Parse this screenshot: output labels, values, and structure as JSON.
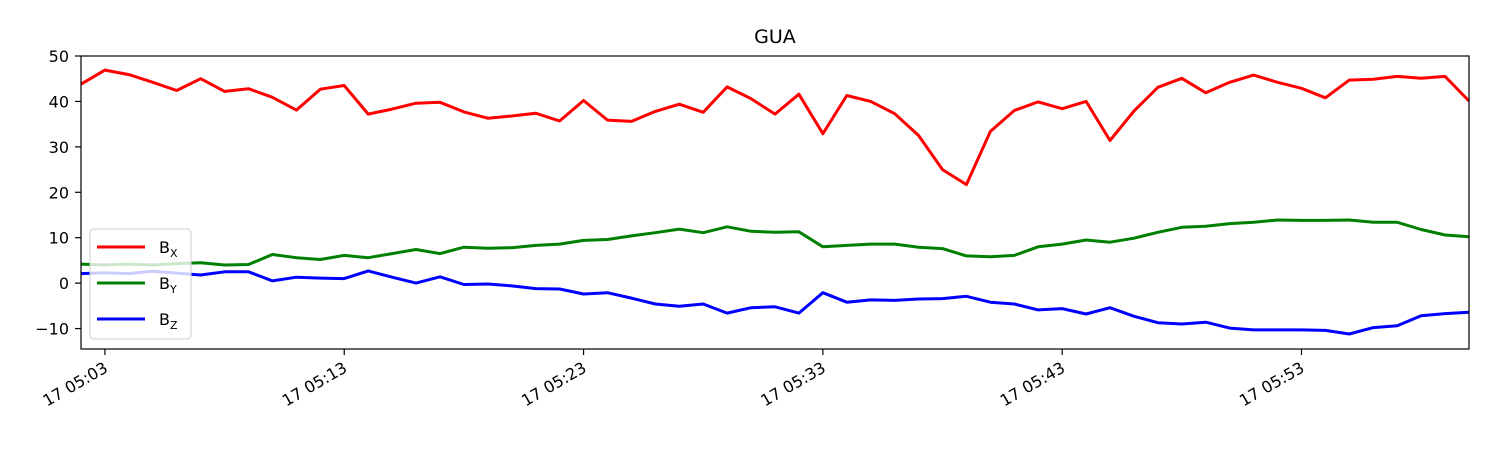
{
  "chart_data": {
    "type": "line",
    "title": "GUA",
    "xlabel": "",
    "ylabel": "",
    "x_start": "05:02",
    "x_end": "06:00",
    "x_ticks": [
      {
        "t": "05:03",
        "label": "17 05:03"
      },
      {
        "t": "05:13",
        "label": "17 05:13"
      },
      {
        "t": "05:23",
        "label": "17 05:23"
      },
      {
        "t": "05:33",
        "label": "17 05:33"
      },
      {
        "t": "05:43",
        "label": "17 05:43"
      },
      {
        "t": "05:53",
        "label": "17 05:53"
      }
    ],
    "ylim": [
      -14.5,
      50
    ],
    "y_ticks": [
      -10,
      0,
      10,
      20,
      30,
      40,
      50
    ],
    "grid": false,
    "legend_position": "lower-left",
    "series": [
      {
        "name": "B",
        "subscript": "X",
        "color": "#ff0000",
        "values": [
          43.8,
          46.9,
          45.9,
          44.2,
          42.4,
          45.0,
          42.2,
          42.8,
          40.9,
          38.1,
          42.7,
          43.5,
          37.2,
          38.3,
          39.6,
          39.8,
          37.7,
          36.3,
          36.8,
          37.4,
          35.7,
          40.2,
          35.9,
          35.6,
          37.8,
          39.4,
          37.6,
          43.2,
          40.6,
          37.2,
          41.6,
          32.9,
          41.3,
          40.0,
          37.3,
          32.5,
          25.0,
          21.7,
          33.4,
          38.0,
          39.9,
          38.4,
          40.0,
          31.4,
          37.9,
          43.1,
          45.1,
          41.9,
          44.2,
          45.8,
          44.2,
          42.9,
          40.8,
          44.7,
          44.9,
          45.5,
          45.1,
          45.5,
          40.1
        ]
      },
      {
        "name": "B",
        "subscript": "Y",
        "color": "#008000",
        "values": [
          4.2,
          4.0,
          4.2,
          4.0,
          4.3,
          4.5,
          4.0,
          4.1,
          6.3,
          5.6,
          5.2,
          6.1,
          5.6,
          6.5,
          7.4,
          6.5,
          7.9,
          7.7,
          7.8,
          8.3,
          8.6,
          9.4,
          9.6,
          10.4,
          11.1,
          11.9,
          11.1,
          12.4,
          11.4,
          11.2,
          11.3,
          8.0,
          8.3,
          8.6,
          8.6,
          7.9,
          7.6,
          6.0,
          5.8,
          6.1,
          8.0,
          8.6,
          9.5,
          9.0,
          9.9,
          11.2,
          12.3,
          12.5,
          13.1,
          13.4,
          13.9,
          13.8,
          13.8,
          13.9,
          13.4,
          13.4,
          11.8,
          10.6,
          10.2
        ]
      },
      {
        "name": "B",
        "subscript": "Z",
        "color": "#0000ff",
        "values": [
          2.1,
          2.3,
          2.1,
          2.6,
          2.2,
          1.8,
          2.5,
          2.5,
          0.5,
          1.3,
          1.1,
          1.0,
          2.7,
          1.3,
          0.0,
          1.4,
          -0.3,
          -0.2,
          -0.6,
          -1.2,
          -1.3,
          -2.4,
          -2.1,
          -3.3,
          -4.6,
          -5.1,
          -4.6,
          -6.6,
          -5.4,
          -5.2,
          -6.6,
          -2.1,
          -4.2,
          -3.7,
          -3.8,
          -3.5,
          -3.4,
          -2.9,
          -4.2,
          -4.6,
          -5.9,
          -5.6,
          -6.8,
          -5.4,
          -7.3,
          -8.7,
          -9.0,
          -8.6,
          -9.9,
          -10.3,
          -10.3,
          -10.3,
          -10.4,
          -11.2,
          -9.8,
          -9.4,
          -7.2,
          -6.7,
          -6.4
        ]
      }
    ]
  }
}
